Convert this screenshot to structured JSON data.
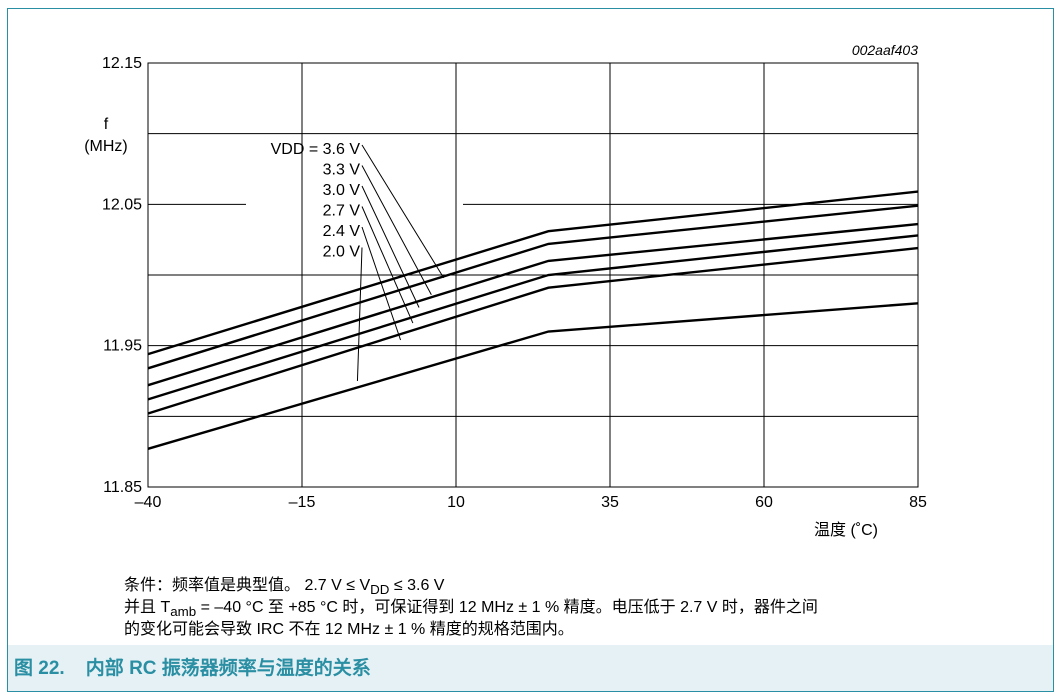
{
  "chart_data": {
    "type": "line",
    "figure_id": "002aaf403",
    "ylabel_line1": "f",
    "ylabel_line2": "(MHz)",
    "xlabel": "温度 (˚C)",
    "xlim": [
      -40,
      85
    ],
    "ylim": [
      11.85,
      12.15
    ],
    "x_ticks": [
      -40,
      -15,
      10,
      35,
      60,
      85
    ],
    "x_tick_labels": [
      "–40",
      "–15",
      "10",
      "35",
      "60",
      "85"
    ],
    "y_ticks": [
      11.85,
      11.95,
      12.05,
      12.15
    ],
    "y_tick_labels": [
      "11.85",
      "11.95",
      "12.05",
      "12.15"
    ],
    "y_grid": [
      11.85,
      11.9,
      11.95,
      12.0,
      12.05,
      12.1,
      12.15
    ],
    "grid": true,
    "x": [
      -40,
      25,
      85
    ],
    "series": [
      {
        "name": "VDD = 3.6 V",
        "values": [
          11.944,
          12.031,
          12.059
        ],
        "label_point": [
          8,
          11.998
        ]
      },
      {
        "name": "3.3 V",
        "values": [
          11.934,
          12.022,
          12.049
        ],
        "label_point": [
          6,
          11.986
        ]
      },
      {
        "name": "3.0 V",
        "values": [
          11.922,
          12.01,
          12.036
        ],
        "label_point": [
          4,
          11.977
        ]
      },
      {
        "name": "2.7 V",
        "values": [
          11.912,
          12.0,
          12.028
        ],
        "label_point": [
          3,
          11.966
        ]
      },
      {
        "name": "2.4 V",
        "values": [
          11.902,
          11.991,
          12.019
        ],
        "label_point": [
          1,
          11.954
        ]
      },
      {
        "name": "2.0 V",
        "values": [
          11.877,
          11.96,
          11.98
        ],
        "label_point": [
          -6,
          11.925
        ]
      }
    ]
  },
  "notes": {
    "line1": "条件：频率值是典型值。 2.7 V ≤ V",
    "line1_sub": "DD",
    "line1_end": " ≤ 3.6 V",
    "line2_start": "并且 T",
    "line2_sub": "amb",
    "line2_end": " = –40 °C 至 +85 °C 时，可保证得到 12 MHz ± 1 % 精度。电压低于 2.7 V 时，器件之间",
    "line3": "的变化可能会导致 IRC 不在 12 MHz ± 1 % 精度的规格范围内。"
  },
  "caption": {
    "text": "图 22.    内部 RC 振荡器频率与温度的关系"
  },
  "colors": {
    "frame": "#2a8fa3",
    "caption_bg": "#e6f1f6",
    "caption_text": "#2a8fa3",
    "grid": "#000000",
    "series": "#000000"
  }
}
